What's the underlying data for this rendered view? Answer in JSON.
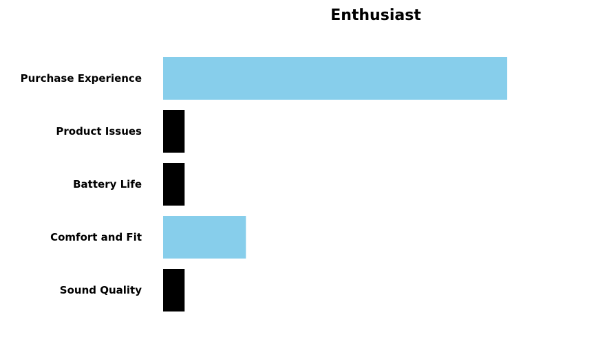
{
  "chart_data": {
    "type": "bar",
    "orientation": "horizontal",
    "title": "Enthusiast",
    "xlabel": "",
    "ylabel": "",
    "categories": [
      "Purchase Experience",
      "Product Issues",
      "Battery Life",
      "Comfort and Fit",
      "Sound Quality"
    ],
    "values": [
      16,
      1,
      1,
      3.85,
      1
    ],
    "xlim": [
      0,
      20
    ],
    "bar_colors": [
      "#87CEEB",
      "#000000",
      "#000000",
      "#87CEEB",
      "#000000"
    ],
    "grid": false,
    "axes_visible": false,
    "legend": "none"
  }
}
